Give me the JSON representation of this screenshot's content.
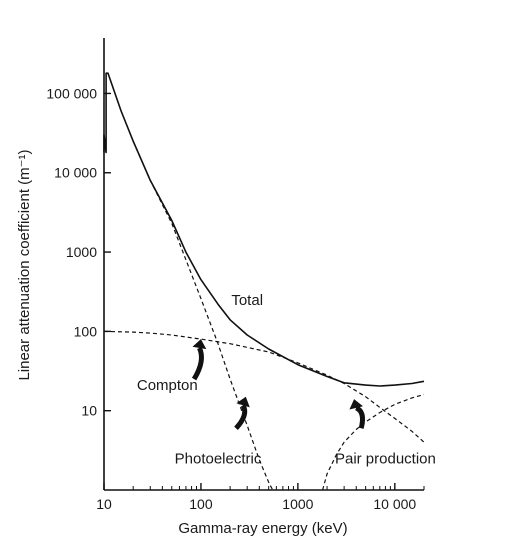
{
  "chart_data": {
    "type": "line",
    "title": "",
    "xlabel": "Gamma-ray energy (keV)",
    "ylabel": "Linear attenuation coefficient (m⁻¹)",
    "xscale": "log",
    "yscale": "log",
    "xlim": [
      10,
      20000
    ],
    "ylim": [
      1,
      500000
    ],
    "xticks": [
      {
        "value": 10,
        "label": "10"
      },
      {
        "value": 100,
        "label": "100"
      },
      {
        "value": 1000,
        "label": "1000"
      },
      {
        "value": 10000,
        "label": "10 000"
      }
    ],
    "yticks": [
      {
        "value": 10,
        "label": "10"
      },
      {
        "value": 100,
        "label": "100"
      },
      {
        "value": 1000,
        "label": "1000"
      },
      {
        "value": 10000,
        "label": "10 000"
      },
      {
        "value": 100000,
        "label": "100 000"
      }
    ],
    "grid": false,
    "series": [
      {
        "name": "Total",
        "style": "solid",
        "points": [
          [
            10,
            18000
          ],
          [
            10,
            30000
          ],
          [
            10.5,
            18000
          ],
          [
            10.5,
            180000
          ],
          [
            11,
            180000
          ],
          [
            15,
            60000
          ],
          [
            20,
            25000
          ],
          [
            30,
            8000
          ],
          [
            50,
            2500
          ],
          [
            70,
            1000
          ],
          [
            100,
            450
          ],
          [
            150,
            220
          ],
          [
            200,
            140
          ],
          [
            300,
            90
          ],
          [
            500,
            60
          ],
          [
            1000,
            38
          ],
          [
            2000,
            27
          ],
          [
            3000,
            22.5
          ],
          [
            5000,
            21
          ],
          [
            7000,
            20.5
          ],
          [
            10000,
            21
          ],
          [
            15000,
            22
          ],
          [
            20000,
            23.5
          ]
        ]
      },
      {
        "name": "Compton",
        "style": "dashed",
        "points": [
          [
            10,
            100
          ],
          [
            20,
            98
          ],
          [
            30,
            95
          ],
          [
            50,
            90
          ],
          [
            100,
            80
          ],
          [
            200,
            70
          ],
          [
            500,
            55
          ],
          [
            1000,
            40
          ],
          [
            2000,
            28
          ],
          [
            3000,
            22
          ],
          [
            5000,
            15
          ],
          [
            7000,
            11
          ],
          [
            10000,
            8
          ],
          [
            15000,
            5.5
          ],
          [
            20000,
            4
          ]
        ]
      },
      {
        "name": "Photoelectric",
        "style": "dashed",
        "points": [
          [
            20,
            25000
          ],
          [
            30,
            8000
          ],
          [
            50,
            2300
          ],
          [
            70,
            800
          ],
          [
            100,
            260
          ],
          [
            150,
            70
          ],
          [
            200,
            25
          ],
          [
            300,
            6.5
          ],
          [
            400,
            2.4
          ],
          [
            500,
            1.25
          ],
          [
            550,
            1
          ]
        ]
      },
      {
        "name": "Pair production",
        "style": "dashed",
        "points": [
          [
            1800,
            1
          ],
          [
            2000,
            1.6
          ],
          [
            2500,
            2.8
          ],
          [
            3000,
            4
          ],
          [
            4000,
            5.8
          ],
          [
            5000,
            7.2
          ],
          [
            7000,
            9.5
          ],
          [
            10000,
            12
          ],
          [
            15000,
            14.5
          ],
          [
            20000,
            16
          ]
        ]
      }
    ],
    "annotations": [
      {
        "text": "Total",
        "x": 300,
        "y": 250
      },
      {
        "text": "Compton",
        "x": 45,
        "y": 21
      },
      {
        "text": "Photoelectric",
        "x": 150,
        "y": 2.5
      },
      {
        "text": "Pair production",
        "x": 8000,
        "y": 2.5
      }
    ],
    "arrows": [
      {
        "label": "Compton",
        "from": [
          85,
          25
        ],
        "to": [
          100,
          80
        ]
      },
      {
        "label": "Photoelectric",
        "from": [
          230,
          6
        ],
        "to": [
          290,
          15
        ]
      },
      {
        "label": "Pair production",
        "from": [
          4500,
          6
        ],
        "to": [
          3800,
          14
        ]
      }
    ]
  }
}
